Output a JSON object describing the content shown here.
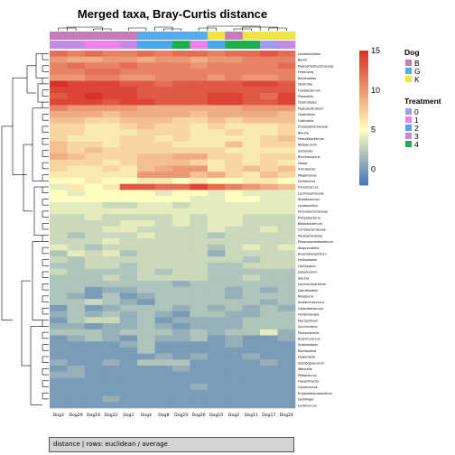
{
  "chart_data": {
    "type": "heatmap",
    "title": "Merged taxa, Bray-Curtis distance",
    "caption": "distance | rows: euclidean / average",
    "columns": [
      "Dog3",
      "Dog29",
      "Dog16",
      "Dog22",
      "Dog1",
      "Dog4",
      "Dog8",
      "Dog20",
      "Dog26",
      "Dog10",
      "Dog2",
      "Dog11",
      "Dog17",
      "Dog24"
    ],
    "column_dog": [
      "B",
      "B",
      "B",
      "B",
      "B",
      "G",
      "G",
      "G",
      "G",
      "K",
      "B",
      "K",
      "K",
      "K"
    ],
    "column_treatment": [
      "3",
      "3",
      "1",
      "1",
      "3",
      "2",
      "2",
      "4",
      "1",
      "2",
      "4",
      "4",
      "0",
      "3"
    ],
    "row_labels": [
      "Lactobacillales",
      "Bacilli",
      "Peptostreptococcaceae",
      "Firmicutes",
      "Bacteroides",
      "Clostridia",
      "Fusobacterium",
      "Prevotella",
      "Clostridiales",
      "Peptoclostridium",
      "Clostridium",
      "Collinsella",
      "Erysipelotrichaceae",
      "Blautia",
      "Faecalibacterium",
      "Allobaculum",
      "Sutterella",
      "Ruminococcus",
      "Dorea",
      "Turicibacter",
      "Megamonas",
      "Escherichia",
      "Enterococcus",
      "Lachnospiraceae",
      "Streptococcus",
      "Lactobacillus",
      "Enterobacteriaceae",
      "Proteobacteria",
      "Bifidobacterium",
      "Coriobacteriaceae",
      "Parabacteroides",
      "Phascolarctobacterium",
      "Alloprevotella",
      "Anaerobiospirillum",
      "Helicobacter",
      "Oscillospira",
      "Eubacterium",
      "Slackia",
      "Lachnoclostridium",
      "Desulfovibrio",
      "Roseburia",
      "Acidaminococcus",
      "Catenibacterium",
      "Holdemanella",
      "Mucispirillum",
      "Succinivibrio",
      "Parasutterella",
      "Butyricicoccus",
      "Anaerostipes",
      "Romboutsia",
      "Howardella",
      "Subdoligranulum",
      "Weissella",
      "Pediococcus",
      "Flavonifractor",
      "Coprococcus",
      "Erysipelatoclostridium",
      "Gemmiger",
      "Lactococcus"
    ],
    "values": [
      [
        12,
        11,
        12,
        11,
        11,
        12,
        11,
        12,
        12,
        11,
        12,
        12,
        13,
        12
      ],
      [
        10,
        9,
        9,
        10,
        10,
        9,
        10,
        10,
        9,
        10,
        10,
        11,
        11,
        11
      ],
      [
        11,
        12,
        11,
        11,
        12,
        11,
        11,
        11,
        10,
        11,
        11,
        11,
        11,
        12
      ],
      [
        11,
        11,
        12,
        12,
        11,
        11,
        11,
        11,
        11,
        11,
        11,
        11,
        11,
        11
      ],
      [
        10,
        10,
        11,
        11,
        10,
        10,
        11,
        11,
        11,
        10,
        11,
        10,
        10,
        11
      ],
      [
        15,
        14,
        14,
        14,
        13,
        13,
        12,
        13,
        13,
        13,
        13,
        14,
        14,
        13
      ],
      [
        14,
        14,
        14,
        14,
        14,
        13,
        13,
        13,
        13,
        13,
        13,
        13,
        13,
        13
      ],
      [
        13,
        14,
        15,
        14,
        14,
        13,
        13,
        13,
        13,
        14,
        14,
        13,
        12,
        14
      ],
      [
        14,
        14,
        14,
        13,
        14,
        14,
        13,
        13,
        13,
        14,
        14,
        13,
        13,
        14
      ],
      [
        11,
        10,
        10,
        10,
        10,
        9,
        9,
        9,
        9,
        9,
        9,
        10,
        10,
        10
      ],
      [
        9,
        9,
        9,
        8,
        9,
        9,
        9,
        9,
        8,
        9,
        9,
        9,
        9,
        8
      ],
      [
        8,
        8,
        7,
        7,
        8,
        8,
        8,
        7,
        7,
        8,
        7,
        8,
        8,
        8
      ],
      [
        7,
        7,
        6,
        6,
        7,
        8,
        7,
        7,
        6,
        7,
        6,
        6,
        6,
        7
      ],
      [
        7,
        7,
        6,
        6,
        6,
        7,
        7,
        7,
        6,
        6,
        7,
        6,
        6,
        7
      ],
      [
        7,
        6,
        6,
        6,
        7,
        7,
        6,
        7,
        6,
        6,
        6,
        6,
        7,
        8
      ],
      [
        8,
        7,
        7,
        6,
        7,
        7,
        7,
        6,
        6,
        6,
        8,
        6,
        7,
        7
      ],
      [
        8,
        7,
        8,
        7,
        7,
        7,
        7,
        7,
        7,
        7,
        6,
        6,
        6,
        6
      ],
      [
        9,
        8,
        7,
        7,
        7,
        8,
        8,
        9,
        9,
        7,
        7,
        6,
        7,
        7
      ],
      [
        7,
        7,
        7,
        6,
        7,
        8,
        8,
        8,
        7,
        6,
        7,
        6,
        7,
        6
      ],
      [
        7,
        6,
        6,
        7,
        6,
        8,
        9,
        10,
        10,
        6,
        7,
        8,
        7,
        8
      ],
      [
        6,
        6,
        6,
        6,
        6,
        10,
        10,
        10,
        8,
        9,
        7,
        6,
        8,
        7
      ],
      [
        5,
        5,
        6,
        5,
        5,
        6,
        6,
        5,
        6,
        5,
        5,
        6,
        6,
        5
      ],
      [
        4,
        6,
        5,
        6,
        13,
        13,
        12,
        12,
        14,
        12,
        11,
        10,
        9,
        8
      ],
      [
        5,
        4,
        5,
        5,
        5,
        5,
        4,
        5,
        5,
        4,
        5,
        4,
        4,
        4
      ],
      [
        5,
        5,
        5,
        5,
        5,
        5,
        5,
        5,
        4,
        4,
        5,
        5,
        4,
        4
      ],
      [
        4,
        4,
        4,
        3,
        3,
        4,
        4,
        3,
        4,
        4,
        4,
        4,
        4,
        4
      ],
      [
        4,
        4,
        4,
        4,
        4,
        4,
        4,
        4,
        4,
        4,
        4,
        4,
        4,
        4
      ],
      [
        3,
        3,
        4,
        3,
        3,
        3,
        3,
        4,
        3,
        4,
        4,
        3,
        3,
        3
      ],
      [
        3,
        3,
        3,
        3,
        4,
        4,
        3,
        4,
        3,
        4,
        4,
        3,
        3,
        3
      ],
      [
        3,
        3,
        3,
        4,
        4,
        3,
        3,
        3,
        3,
        4,
        3,
        3,
        4,
        3
      ],
      [
        3,
        2,
        3,
        3,
        3,
        4,
        3,
        3,
        3,
        2,
        3,
        3,
        3,
        3
      ],
      [
        3,
        3,
        3,
        4,
        3,
        3,
        3,
        3,
        3,
        3,
        3,
        3,
        3,
        3
      ],
      [
        4,
        3,
        2,
        3,
        3,
        3,
        3,
        3,
        3,
        2,
        3,
        4,
        3,
        4
      ],
      [
        2,
        4,
        3,
        4,
        2,
        3,
        3,
        3,
        3,
        1,
        3,
        3,
        3,
        3
      ],
      [
        3,
        2,
        3,
        3,
        3,
        3,
        3,
        3,
        3,
        3,
        3,
        2,
        3,
        3
      ],
      [
        2,
        2,
        3,
        3,
        2,
        3,
        3,
        3,
        3,
        2,
        2,
        3,
        3,
        3
      ],
      [
        3,
        2,
        2,
        2,
        2,
        3,
        2,
        3,
        3,
        2,
        2,
        2,
        2,
        2
      ],
      [
        2,
        2,
        2,
        3,
        2,
        3,
        3,
        3,
        3,
        2,
        2,
        3,
        2,
        2
      ],
      [
        2,
        2,
        2,
        2,
        2,
        2,
        2,
        1,
        2,
        2,
        2,
        2,
        2,
        2
      ],
      [
        2,
        2,
        0,
        1,
        1,
        2,
        2,
        2,
        2,
        2,
        1,
        2,
        1,
        2
      ],
      [
        2,
        1,
        0,
        2,
        0,
        1,
        2,
        2,
        2,
        2,
        1,
        2,
        2,
        2
      ],
      [
        2,
        2,
        3,
        2,
        1,
        0,
        2,
        2,
        2,
        2,
        2,
        2,
        1,
        2
      ],
      [
        0,
        2,
        0,
        1,
        2,
        2,
        2,
        1,
        2,
        1,
        2,
        1,
        2,
        1
      ],
      [
        1,
        2,
        1,
        2,
        1,
        2,
        1,
        0,
        2,
        2,
        1,
        1,
        2,
        2
      ],
      [
        0,
        2,
        3,
        3,
        1,
        2,
        0,
        1,
        1,
        1,
        1,
        2,
        2,
        2
      ],
      [
        1,
        1,
        0,
        1,
        1,
        2,
        1,
        0,
        1,
        1,
        1,
        2,
        2,
        2
      ],
      [
        2,
        2,
        2,
        1,
        2,
        2,
        2,
        1,
        2,
        1,
        2,
        2,
        4,
        1
      ],
      [
        0,
        1,
        2,
        1,
        0,
        2,
        1,
        1,
        2,
        0,
        1,
        0,
        0,
        1
      ],
      [
        0,
        0,
        0,
        0,
        1,
        2,
        0,
        0,
        0,
        0,
        1,
        0,
        0,
        0
      ],
      [
        0,
        0,
        0,
        0,
        0,
        2,
        0,
        0,
        0,
        0,
        0,
        0,
        0,
        0
      ],
      [
        0,
        0,
        0,
        0,
        0,
        0,
        1,
        0,
        1,
        0,
        0,
        1,
        0,
        0
      ],
      [
        1,
        0,
        0,
        1,
        0,
        2,
        2,
        2,
        0,
        0,
        0,
        0,
        1,
        0
      ],
      [
        0,
        1,
        0,
        0,
        0,
        0,
        0,
        1,
        0,
        0,
        0,
        0,
        0,
        0
      ],
      [
        1,
        1,
        0,
        0,
        0,
        0,
        0,
        0,
        0,
        0,
        0,
        0,
        0,
        0
      ],
      [
        0,
        0,
        0,
        0,
        0,
        0,
        0,
        0,
        0,
        0,
        0,
        0,
        0,
        0
      ],
      [
        0,
        0,
        0,
        0,
        0,
        0,
        0,
        0,
        1,
        0,
        0,
        0,
        0,
        0
      ],
      [
        0,
        0,
        0,
        0,
        0,
        0,
        0,
        0,
        0,
        0,
        0,
        0,
        0,
        0
      ],
      [
        0,
        0,
        0,
        1,
        0,
        0,
        0,
        0,
        0,
        0,
        0,
        0,
        0,
        0
      ],
      [
        0,
        0,
        0,
        0,
        0,
        0,
        0,
        0,
        0,
        0,
        0,
        0,
        0,
        0
      ]
    ],
    "color_scale": {
      "min": -2,
      "max": 15,
      "ticks": [
        0,
        5,
        10,
        15
      ],
      "low_color": "#4575b4",
      "mid_color": "#ffffbf",
      "high_color": "#d73027"
    },
    "legend": {
      "dog_title": "Dog",
      "dog_items": [
        {
          "key": "B",
          "color": "#c77cba"
        },
        {
          "key": "G",
          "color": "#55acea"
        },
        {
          "key": "K",
          "color": "#f0e442"
        }
      ],
      "treatment_title": "Treatment",
      "treatment_items": [
        {
          "key": "0",
          "color": "#9c9cf0"
        },
        {
          "key": "1",
          "color": "#f080f0"
        },
        {
          "key": "2",
          "color": "#4aa8f0"
        },
        {
          "key": "3",
          "color": "#c38ae8"
        },
        {
          "key": "4",
          "color": "#17b44d"
        }
      ]
    }
  }
}
